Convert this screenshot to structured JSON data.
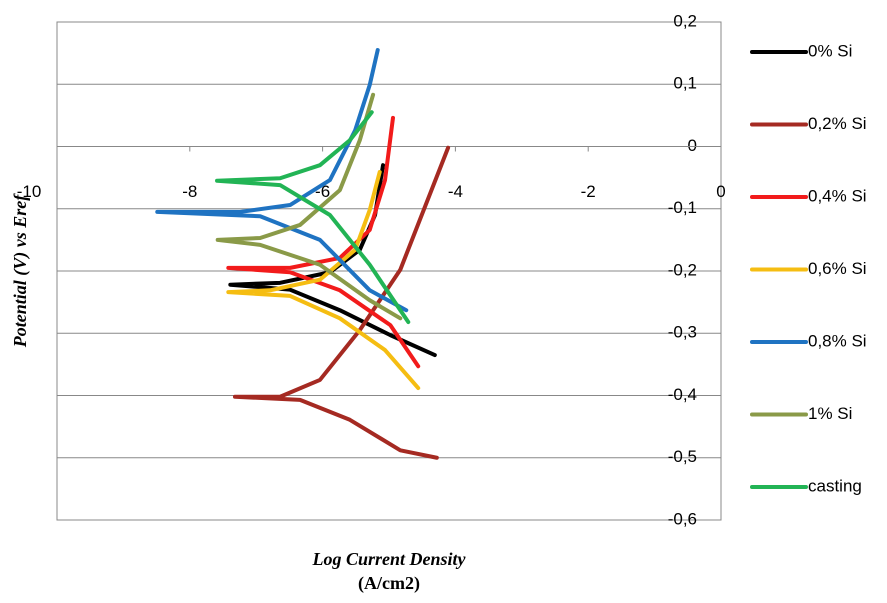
{
  "chart_data": {
    "type": "line",
    "xlabel": [
      "Log Current Density",
      "(A/cm2)"
    ],
    "ylabel": "Potential (V) vs Eref",
    "xlim": [
      -10,
      0
    ],
    "ylim": [
      -0.6,
      0.2
    ],
    "xticks": [
      -10,
      -8,
      -6,
      -4,
      -2,
      0
    ],
    "yticks": [
      {
        "value": 0.2,
        "label": "0,2"
      },
      {
        "value": 0.1,
        "label": "0,1"
      },
      0,
      {
        "value": -0.1,
        "label": "-0,1"
      },
      {
        "value": -0.2,
        "label": "-0,2"
      },
      {
        "value": -0.3,
        "label": "-0,3"
      },
      {
        "value": -0.4,
        "label": "-0,4"
      },
      {
        "value": -0.5,
        "label": "-0,5"
      },
      {
        "value": -0.6,
        "label": "-0,6"
      }
    ],
    "grid": true,
    "legend": "right",
    "series": [
      {
        "name": "0% Si",
        "color": "#000000",
        "x": [
          -5.09,
          -5.21,
          -5.44,
          -5.89,
          -6.64,
          -7.39,
          -6.49,
          -5.74,
          -4.98,
          -4.31
        ],
        "values": [
          -0.03,
          -0.11,
          -0.166,
          -0.202,
          -0.219,
          -0.222,
          -0.23,
          -0.263,
          -0.303,
          -0.335
        ]
      },
      {
        "name": "0,2% Si",
        "color": "#a52a22",
        "x": [
          -4.11,
          -4.83,
          -5.44,
          -6.04,
          -6.64,
          -7.32,
          -6.34,
          -5.59,
          -4.83,
          -4.28
        ],
        "values": [
          -0.002,
          -0.198,
          -0.295,
          -0.375,
          -0.402,
          -0.402,
          -0.407,
          -0.439,
          -0.488,
          -0.5
        ]
      },
      {
        "name": "0,4% Si",
        "color": "#f21b1b",
        "x": [
          -4.94,
          -5.06,
          -5.29,
          -5.74,
          -6.49,
          -7.42,
          -6.49,
          -5.74,
          -4.98,
          -4.56
        ],
        "values": [
          0.046,
          -0.054,
          -0.134,
          -0.179,
          -0.195,
          -0.195,
          -0.202,
          -0.231,
          -0.287,
          -0.353
        ]
      },
      {
        "name": "0,6% Si",
        "color": "#f5bd12",
        "x": [
          -5.14,
          -5.29,
          -5.51,
          -6.04,
          -6.79,
          -7.42,
          -6.49,
          -5.74,
          -5.06,
          -4.56
        ],
        "values": [
          -0.041,
          -0.102,
          -0.166,
          -0.214,
          -0.231,
          -0.234,
          -0.24,
          -0.276,
          -0.327,
          -0.388
        ]
      },
      {
        "name": "0,8% Si",
        "color": "#1f73c2",
        "x": [
          -5.17,
          -5.29,
          -5.51,
          -5.89,
          -6.49,
          -7.24,
          -8.49,
          -6.94,
          -6.04,
          -5.29,
          -4.74
        ],
        "values": [
          0.155,
          0.099,
          0.026,
          -0.054,
          -0.094,
          -0.105,
          -0.105,
          -0.112,
          -0.15,
          -0.231,
          -0.263
        ]
      },
      {
        "name": "1% Si",
        "color": "#8a9a48",
        "x": [
          -5.24,
          -5.44,
          -5.74,
          -6.34,
          -6.94,
          -7.58,
          -6.94,
          -6.04,
          -5.29,
          -4.83
        ],
        "values": [
          0.083,
          0.01,
          -0.07,
          -0.126,
          -0.147,
          -0.15,
          -0.158,
          -0.19,
          -0.247,
          -0.276
        ]
      },
      {
        "name": "casting",
        "color": "#22b455",
        "x": [
          -5.26,
          -5.59,
          -6.04,
          -6.64,
          -7.59,
          -6.64,
          -5.89,
          -5.29,
          -4.71
        ],
        "values": [
          0.055,
          0.01,
          -0.03,
          -0.051,
          -0.055,
          -0.062,
          -0.11,
          -0.19,
          -0.282
        ]
      }
    ]
  }
}
